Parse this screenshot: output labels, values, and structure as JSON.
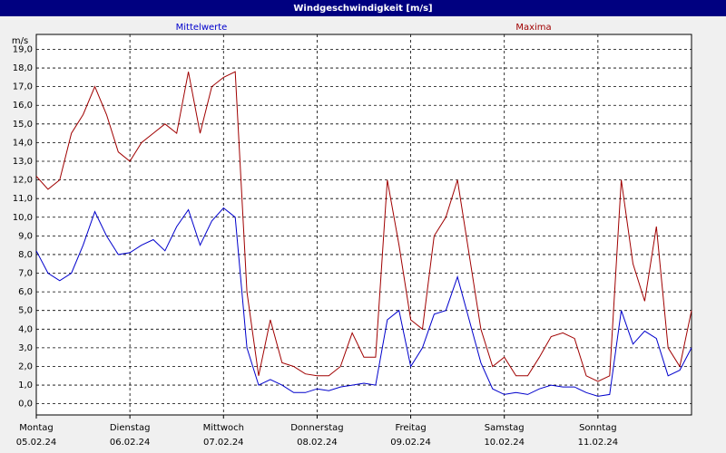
{
  "chart_data": {
    "type": "line",
    "title": "Windgeschwindigkeit [m/s]",
    "y_unit": "m/s",
    "x": [
      0,
      3,
      6,
      9,
      12,
      15,
      18,
      21,
      24,
      27,
      30,
      33,
      36,
      39,
      42,
      45,
      48,
      51,
      54,
      57,
      60,
      63,
      66,
      69,
      72,
      75,
      78,
      81,
      84,
      87,
      90,
      93,
      96,
      99,
      102,
      105,
      108,
      111,
      114,
      117,
      120,
      123,
      126,
      129,
      132,
      135,
      138,
      141,
      144,
      147,
      150,
      153,
      156,
      159,
      162,
      165,
      168
    ],
    "series": [
      {
        "name": "Mittelwerte",
        "color": "#0000cc",
        "values": [
          8.2,
          7.0,
          6.6,
          7.0,
          8.5,
          10.3,
          9.0,
          8.0,
          8.1,
          8.5,
          8.8,
          8.2,
          9.5,
          10.4,
          8.5,
          9.8,
          10.5,
          10.0,
          3.0,
          1.0,
          1.3,
          1.0,
          0.6,
          0.6,
          0.8,
          0.7,
          0.9,
          1.0,
          1.1,
          1.0,
          4.5,
          5.0,
          2.0,
          3.0,
          4.8,
          5.0,
          6.8,
          4.5,
          2.2,
          0.8,
          0.5,
          0.6,
          0.5,
          0.8,
          1.0,
          0.9,
          0.9,
          0.6,
          0.4,
          0.5,
          5.0,
          3.2,
          3.9,
          3.5,
          1.5,
          1.8,
          3.0
        ]
      },
      {
        "name": "Maxima",
        "color": "#a00000",
        "values": [
          12.2,
          11.5,
          12.0,
          14.5,
          15.5,
          17.0,
          15.5,
          13.5,
          13.0,
          14.0,
          14.5,
          15.0,
          14.5,
          17.8,
          14.5,
          17.0,
          17.5,
          17.8,
          6.0,
          1.5,
          4.5,
          2.2,
          2.0,
          1.6,
          1.5,
          1.5,
          2.0,
          3.8,
          2.5,
          2.5,
          12.0,
          8.5,
          4.5,
          4.0,
          9.0,
          10.0,
          12.0,
          8.0,
          4.0,
          2.0,
          2.5,
          1.5,
          1.5,
          2.5,
          3.6,
          3.8,
          3.5,
          1.5,
          1.2,
          1.5,
          12.0,
          7.5,
          5.5,
          9.5,
          3.0,
          2.0,
          5.0
        ]
      }
    ],
    "xlim": [
      0,
      168
    ],
    "xticks": [
      {
        "value": 0,
        "label": "Montag"
      },
      {
        "value": 24,
        "label": "Dienstag"
      },
      {
        "value": 48,
        "label": "Mittwoch"
      },
      {
        "value": 72,
        "label": "Donnerstag"
      },
      {
        "value": 96,
        "label": "Freitag"
      },
      {
        "value": 120,
        "label": "Samstag"
      },
      {
        "value": 144,
        "label": "Sonntag"
      }
    ],
    "xtick_dates": [
      "05.02.24",
      "06.02.24",
      "07.02.24",
      "08.02.24",
      "09.02.24",
      "10.02.24",
      "11.02.24"
    ],
    "ylim": [
      -0.6,
      19.8
    ],
    "yticks": [
      {
        "value": 0,
        "label": "0,0"
      },
      {
        "value": 1,
        "label": "1,0"
      },
      {
        "value": 2,
        "label": "2,0"
      },
      {
        "value": 3,
        "label": "3,0"
      },
      {
        "value": 4,
        "label": "4,0"
      },
      {
        "value": 5,
        "label": "5,0"
      },
      {
        "value": 6,
        "label": "6,0"
      },
      {
        "value": 7,
        "label": "7,0"
      },
      {
        "value": 8,
        "label": "8,0"
      },
      {
        "value": 9,
        "label": "9,0"
      },
      {
        "value": 10,
        "label": "10,0"
      },
      {
        "value": 11,
        "label": "11,0"
      },
      {
        "value": 12,
        "label": "12,0"
      },
      {
        "value": 13,
        "label": "13,0"
      },
      {
        "value": 14,
        "label": "14,0"
      },
      {
        "value": 15,
        "label": "15,0"
      },
      {
        "value": 16,
        "label": "16,0"
      },
      {
        "value": 17,
        "label": "17,0"
      },
      {
        "value": 18,
        "label": "18,0"
      },
      {
        "value": 19,
        "label": "19,0"
      }
    ],
    "grid": true
  }
}
